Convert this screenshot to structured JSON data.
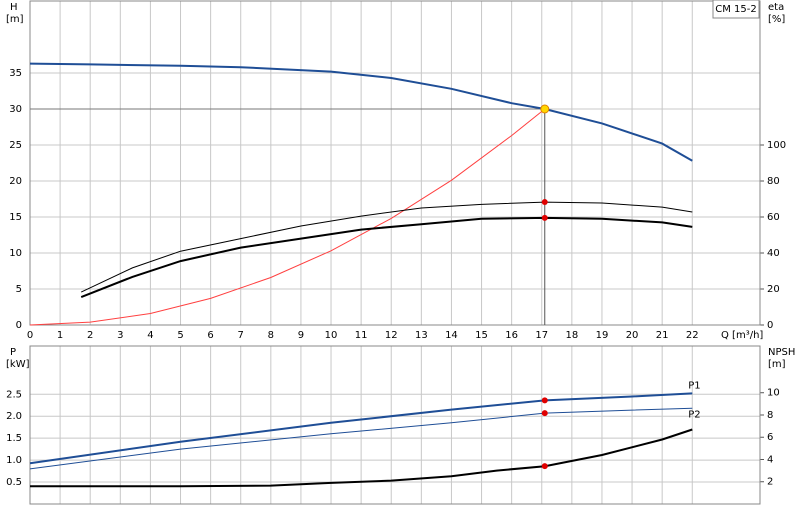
{
  "chart_data": [
    {
      "type": "line",
      "legend_box": "CM 15-2",
      "ylabel": "H",
      "ylabel_unit": "[m]",
      "y2label": "eta",
      "y2label_unit": "[%]",
      "xlabel": "Q [m³/h]",
      "xlim": [
        0,
        24.25
      ],
      "xticks": [
        0,
        1,
        2,
        3,
        4,
        5,
        6,
        7,
        8,
        9,
        10,
        11,
        12,
        13,
        14,
        15,
        16,
        17,
        18,
        19,
        20,
        21,
        22
      ],
      "ylim": [
        0,
        45
      ],
      "yticks": [
        0,
        5,
        10,
        15,
        20,
        25,
        30,
        35
      ],
      "y2lim": [
        0,
        180
      ],
      "y2ticks": [
        0,
        20,
        40,
        60,
        80,
        100
      ],
      "grid": true,
      "series": [
        {
          "color": "#1f4e96",
          "x": [
            0,
            2,
            5,
            7,
            10,
            12,
            14,
            16,
            17.1,
            19,
            21,
            22
          ],
          "values": [
            36.3,
            36.2,
            36,
            35.8,
            35.2,
            34.3,
            32.8,
            30.8,
            30,
            28,
            25.2,
            22.8
          ]
        },
        {
          "color": "#ff4040",
          "x": [
            0,
            2,
            4,
            6,
            8,
            10,
            12,
            14,
            16,
            17.1
          ],
          "values": [
            0,
            0.4,
            1.6,
            3.7,
            6.6,
            10.3,
            14.8,
            20.1,
            26.3,
            30
          ]
        },
        {
          "color": "#000000",
          "axis": "y2",
          "x": [
            1.7,
            3.4,
            5,
            7,
            9,
            11,
            13,
            15,
            17.1,
            19,
            21,
            22
          ],
          "values": [
            18.3,
            31.7,
            41,
            48,
            55,
            60.5,
            65,
            67,
            68.3,
            67.8,
            65.5,
            62.8
          ]
        },
        {
          "color": "#000000",
          "axis": "y2",
          "x": [
            1.7,
            3.4,
            5,
            7,
            9,
            11,
            13,
            15,
            17.1,
            19,
            21,
            22
          ],
          "values": [
            15.5,
            26.7,
            35.5,
            43,
            48,
            53,
            56,
            59,
            59.5,
            59,
            57,
            54.5
          ]
        }
      ],
      "markers": [
        {
          "x": 17.1,
          "y": 30,
          "color": "#ffd700"
        },
        {
          "x": 17.1,
          "y": 68.3,
          "axis": "y2",
          "color": "#e00000"
        },
        {
          "x": 17.1,
          "y": 59.5,
          "axis": "y2",
          "color": "#e00000"
        }
      ]
    },
    {
      "type": "line",
      "ylabel": "P",
      "ylabel_unit": "[kW]",
      "y2label": "NPSH",
      "y2label_unit": "[m]",
      "xlim": [
        0,
        24.25
      ],
      "ylim": [
        0,
        3.6
      ],
      "yticks": [
        0.5,
        {
          "value": 1,
          "label": "1.0"
        },
        1.5,
        {
          "value": 2,
          "label": "2.0"
        },
        2.5
      ],
      "y2lim": [
        0,
        14.2
      ],
      "y2ticks": [
        2,
        4,
        6,
        8,
        10
      ],
      "grid": true,
      "series": [
        {
          "name": "P1",
          "color": "#1f4e96",
          "x": [
            0,
            5,
            10,
            14,
            17.1,
            20,
            22
          ],
          "values": [
            0.93,
            1.42,
            1.85,
            2.15,
            2.36,
            2.45,
            2.52
          ]
        },
        {
          "name": "P2",
          "color": "#1f4e96",
          "x": [
            0,
            5,
            10,
            14,
            17.1,
            20,
            22
          ],
          "values": [
            0.8,
            1.25,
            1.6,
            1.85,
            2.07,
            2.14,
            2.18
          ]
        },
        {
          "color": "#000000",
          "axis": "y2",
          "x": [
            0,
            5,
            8,
            10,
            12,
            14,
            15.5,
            17.1,
            19,
            21,
            22
          ],
          "values": [
            1.6,
            1.6,
            1.65,
            1.9,
            2.1,
            2.5,
            3.0,
            3.4,
            4.4,
            5.8,
            6.7
          ]
        }
      ],
      "markers": [
        {
          "x": 17.1,
          "y": 2.36,
          "color": "#e00000"
        },
        {
          "x": 17.1,
          "y": 2.07,
          "color": "#e00000"
        },
        {
          "x": 17.1,
          "y": 3.4,
          "axis": "y2",
          "color": "#e00000"
        }
      ]
    }
  ]
}
